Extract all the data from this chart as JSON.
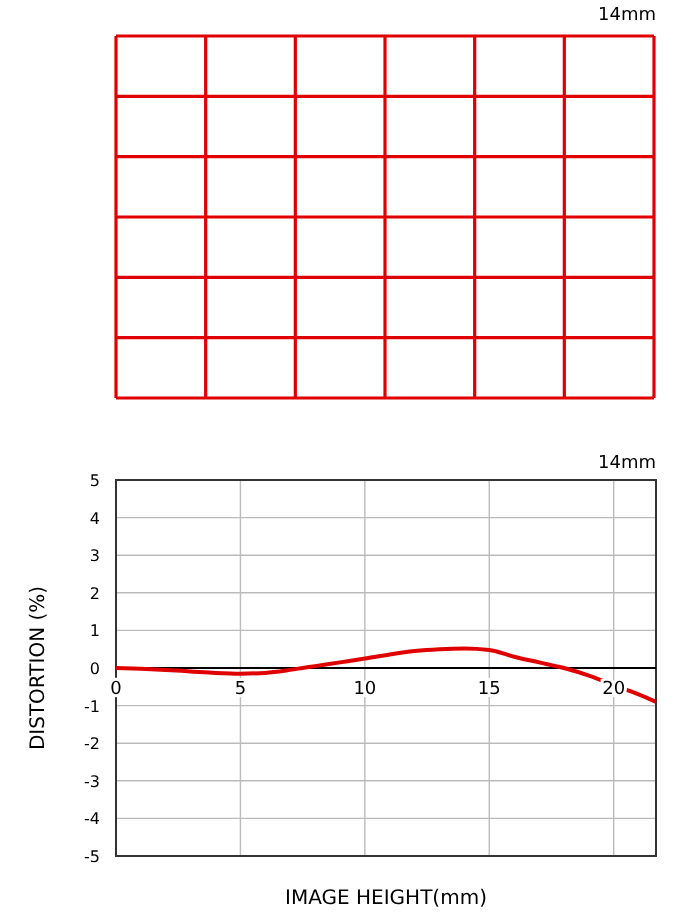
{
  "chart_data": {
    "type": "line",
    "title": "14mm",
    "annotations": [
      "14mm"
    ],
    "xlabel": "IMAGE HEIGHT(mm)",
    "ylabel": "DISTORTION (%)",
    "x": [
      0,
      1,
      2,
      3,
      4,
      5,
      6,
      7,
      7.5,
      8,
      9,
      10,
      11,
      12,
      13,
      14,
      15,
      16,
      17,
      18,
      19,
      20,
      21,
      21.7
    ],
    "series": [
      {
        "color": "#e00000",
        "values": [
          0,
          -0.02,
          -0.05,
          -0.09,
          -0.13,
          -0.15,
          -0.13,
          -0.05,
          0,
          0.05,
          0.15,
          0.25,
          0.36,
          0.45,
          0.5,
          0.52,
          0.48,
          0.3,
          0.15,
          0,
          -0.2,
          -0.45,
          -0.7,
          -0.9
        ]
      }
    ],
    "xlim": [
      0,
      21.7
    ],
    "xticks": [
      0,
      5,
      10,
      15,
      20
    ],
    "ylim": [
      -5,
      5
    ],
    "yticks": [
      -5,
      -4,
      -3,
      -2,
      -1,
      0,
      1,
      2,
      3,
      4,
      5
    ],
    "grid": true,
    "line_style": "solid",
    "marker": "none"
  }
}
